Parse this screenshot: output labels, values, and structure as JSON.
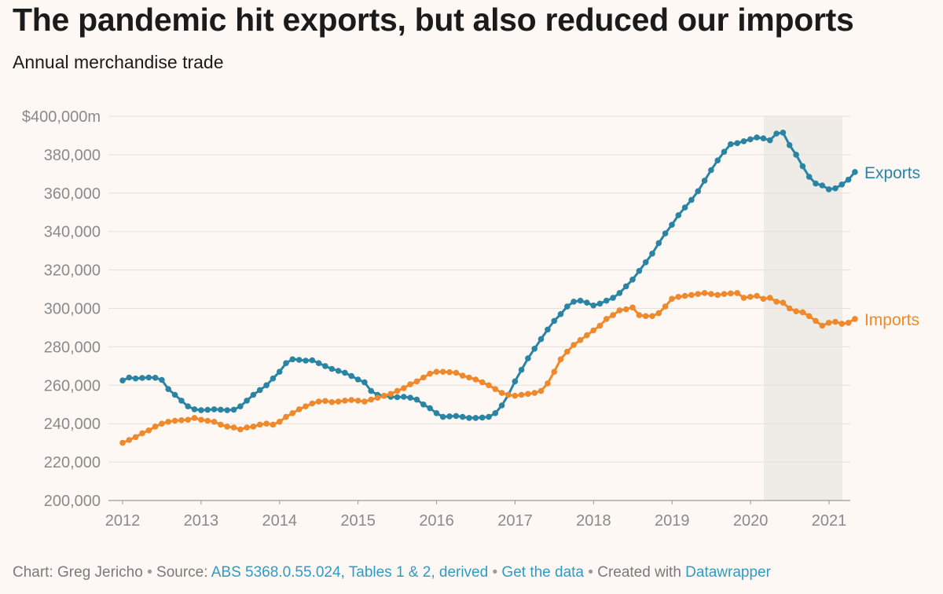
{
  "header": {
    "title": "The pandemic hit exports, but also reduced our imports",
    "subtitle": "Annual merchandise trade"
  },
  "footer": {
    "chart_label": "Chart: Greg Jericho",
    "sep": " • ",
    "source_label": "Source: ",
    "source_link": "ABS 5368.0.55.024, Tables 1 & 2, derived",
    "get_data": "Get the data",
    "created_label": "Created with ",
    "datawrapper": "Datawrapper"
  },
  "colors": {
    "exports": "#2a84a3",
    "imports": "#f0892b",
    "shade": "#efece7",
    "grid": "#e3e0dc",
    "tick": "#8a8a8a",
    "link": "#2f9bc1"
  },
  "chart_data": {
    "type": "line",
    "ylim": [
      200000,
      400000
    ],
    "yticks": [
      200000,
      220000,
      240000,
      260000,
      280000,
      300000,
      320000,
      340000,
      360000,
      380000,
      400000
    ],
    "ytick_labels": [
      "200,000",
      "220,000",
      "240,000",
      "260,000",
      "280,000",
      "300,000",
      "320,000",
      "340,000",
      "360,000",
      "380,000",
      "$400,000m"
    ],
    "xlim": [
      2012,
      2021.17
    ],
    "xticks": [
      2012,
      2013,
      2014,
      2015,
      2016,
      2017,
      2018,
      2019,
      2020,
      2021
    ],
    "xtick_labels": [
      "2012",
      "2013",
      "2014",
      "2015",
      "2016",
      "2017",
      "2018",
      "2019",
      "2020",
      "2021"
    ],
    "shaded_range": [
      2020.17,
      2021.17
    ],
    "grid": true,
    "series": [
      {
        "name": "Exports",
        "color_key": "exports",
        "start": 2012.0,
        "step": 0.0833,
        "values": [
          262500,
          264000,
          263500,
          263800,
          264000,
          263900,
          262800,
          258000,
          255000,
          252000,
          249000,
          247500,
          247000,
          247200,
          247500,
          247300,
          247000,
          247300,
          249000,
          252000,
          255000,
          257500,
          260000,
          263500,
          267000,
          271500,
          273500,
          273200,
          272800,
          273000,
          271500,
          270000,
          268500,
          267500,
          266500,
          264800,
          263000,
          261500,
          257000,
          255000,
          254500,
          254000,
          253800,
          254000,
          253500,
          252500,
          250000,
          248000,
          245500,
          243500,
          243800,
          244000,
          243500,
          243000,
          243000,
          243200,
          243500,
          245500,
          249500,
          255000,
          262000,
          268000,
          274000,
          279000,
          284000,
          289000,
          293500,
          297000,
          301000,
          303500,
          304000,
          303000,
          301500,
          302500,
          304000,
          305500,
          308000,
          311500,
          315000,
          319500,
          324000,
          328500,
          334000,
          339000,
          343500,
          348500,
          352500,
          356500,
          361000,
          366500,
          372000,
          377000,
          381500,
          385500,
          386000,
          387000,
          388000,
          389000,
          388500,
          387500,
          391000,
          391500,
          385000,
          380000,
          374000,
          368500,
          365000,
          364000,
          362000,
          362500,
          364500,
          367000,
          371000
        ]
      },
      {
        "name": "Imports",
        "color_key": "imports",
        "start": 2012.0,
        "step": 0.0833,
        "values": [
          230000,
          231500,
          233000,
          235000,
          236500,
          238500,
          240000,
          241000,
          241500,
          241800,
          242000,
          243000,
          242000,
          241500,
          241000,
          239500,
          238500,
          238000,
          237000,
          238000,
          238500,
          239500,
          240000,
          239500,
          241000,
          243500,
          245500,
          247500,
          249000,
          250500,
          251500,
          251800,
          251200,
          251500,
          252000,
          252300,
          252000,
          251500,
          252500,
          253500,
          254500,
          255500,
          257000,
          258500,
          260500,
          262000,
          264000,
          266000,
          267000,
          267000,
          266800,
          266500,
          265000,
          264000,
          263000,
          261500,
          260000,
          258000,
          256000,
          255000,
          254500,
          255000,
          255500,
          256000,
          257000,
          261000,
          267000,
          273500,
          277500,
          281000,
          283500,
          286000,
          288500,
          291000,
          294500,
          296500,
          299000,
          299500,
          300500,
          296500,
          296000,
          296000,
          297500,
          301000,
          305000,
          306000,
          306500,
          307000,
          307500,
          308000,
          307500,
          307000,
          307500,
          307800,
          308000,
          305500,
          306000,
          306500,
          305000,
          305500,
          303500,
          303000,
          300000,
          298500,
          298000,
          296000,
          293500,
          291000,
          292500,
          293000,
          292000,
          292500,
          294500
        ]
      }
    ]
  }
}
